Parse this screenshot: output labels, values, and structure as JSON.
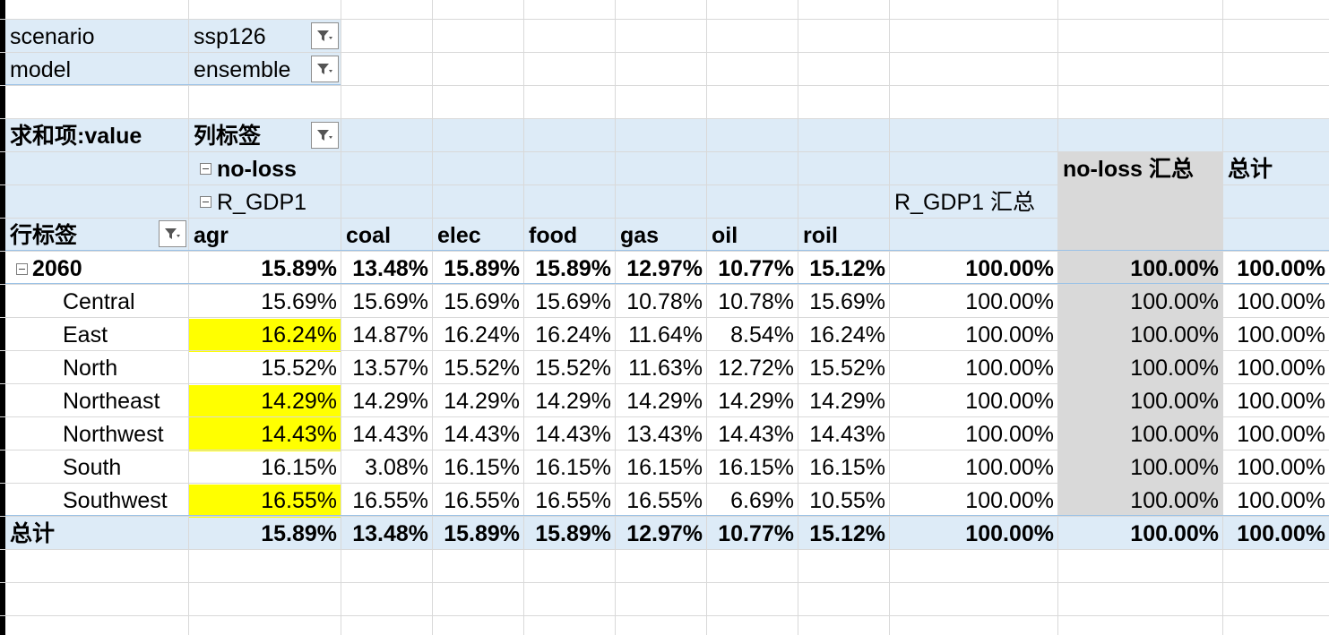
{
  "filters": [
    {
      "label": "scenario",
      "value": "ssp126"
    },
    {
      "label": "model",
      "value": "ensemble"
    }
  ],
  "pivot": {
    "value_label": "求和项:value",
    "col_labels": "列标签",
    "row_labels": "行标签",
    "group1": "no-loss",
    "group2": "R_GDP1",
    "columns": [
      "agr",
      "coal",
      "elec",
      "food",
      "gas",
      "oil",
      "roil"
    ],
    "subtotal2": "R_GDP1 汇总",
    "subtotal1": "no-loss 汇总",
    "grand_total": "总计",
    "year_row": {
      "label": "2060",
      "values": [
        "15.89%",
        "13.48%",
        "15.89%",
        "15.89%",
        "12.97%",
        "10.77%",
        "15.12%"
      ],
      "sub2": "100.00%",
      "sub1": "100.00%",
      "total": "100.00%"
    },
    "rows": [
      {
        "label": "Central",
        "values": [
          "15.69%",
          "15.69%",
          "15.69%",
          "15.69%",
          "10.78%",
          "10.78%",
          "15.69%"
        ],
        "sub2": "100.00%",
        "sub1": "100.00%",
        "total": "100.00%"
      },
      {
        "label": "East",
        "values": [
          "16.24%",
          "14.87%",
          "16.24%",
          "16.24%",
          "11.64%",
          "8.54%",
          "16.24%"
        ],
        "sub2": "100.00%",
        "sub1": "100.00%",
        "total": "100.00%"
      },
      {
        "label": "North",
        "values": [
          "15.52%",
          "13.57%",
          "15.52%",
          "15.52%",
          "11.63%",
          "12.72%",
          "15.52%"
        ],
        "sub2": "100.00%",
        "sub1": "100.00%",
        "total": "100.00%"
      },
      {
        "label": "Northeast",
        "values": [
          "14.29%",
          "14.29%",
          "14.29%",
          "14.29%",
          "14.29%",
          "14.29%",
          "14.29%"
        ],
        "sub2": "100.00%",
        "sub1": "100.00%",
        "total": "100.00%"
      },
      {
        "label": "Northwest",
        "values": [
          "14.43%",
          "14.43%",
          "14.43%",
          "14.43%",
          "13.43%",
          "14.43%",
          "14.43%"
        ],
        "sub2": "100.00%",
        "sub1": "100.00%",
        "total": "100.00%"
      },
      {
        "label": "South",
        "values": [
          "16.15%",
          "3.08%",
          "16.15%",
          "16.15%",
          "16.15%",
          "16.15%",
          "16.15%"
        ],
        "sub2": "100.00%",
        "sub1": "100.00%",
        "total": "100.00%"
      },
      {
        "label": "Southwest",
        "values": [
          "16.55%",
          "16.55%",
          "16.55%",
          "16.55%",
          "16.55%",
          "6.69%",
          "10.55%"
        ],
        "sub2": "100.00%",
        "sub1": "100.00%",
        "total": "100.00%"
      }
    ],
    "total_row": {
      "label": "总计",
      "values": [
        "15.89%",
        "13.48%",
        "15.89%",
        "15.89%",
        "12.97%",
        "10.77%",
        "15.12%"
      ],
      "sub2": "100.00%",
      "sub1": "100.00%",
      "total": "100.00%"
    }
  },
  "highlighted_agr_cells": [
    "East",
    "Northeast",
    "Northwest",
    "Southwest"
  ],
  "colors": {
    "header_band": "#ddebf7",
    "subtotal_column": "#d9d9d9",
    "highlight": "#ffff00",
    "gridline": "#d9d9d9"
  },
  "icons": {
    "filter": "filter-dropdown-icon",
    "collapse": "collapse-minus-icon"
  }
}
